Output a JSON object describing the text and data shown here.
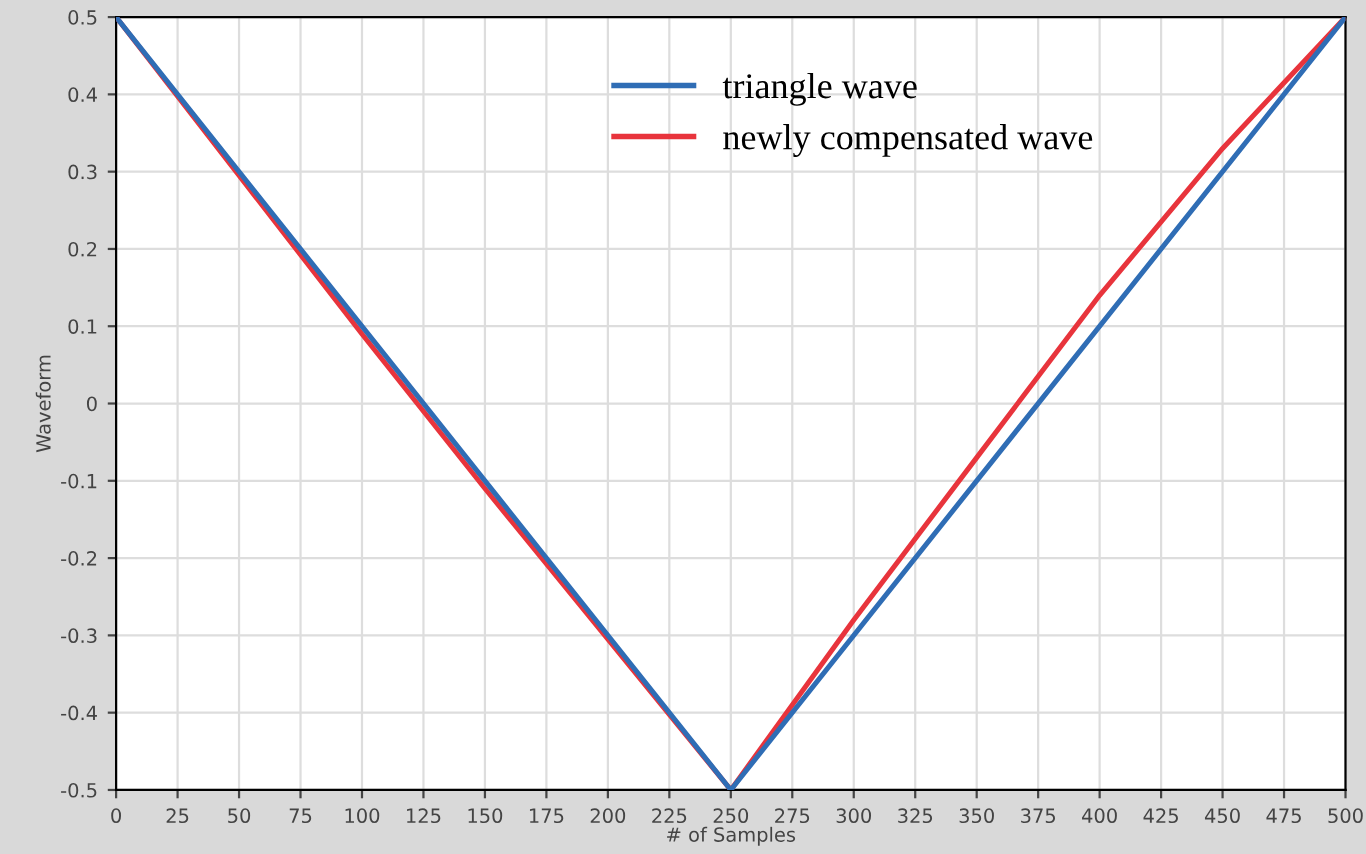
{
  "chart_data": {
    "type": "line",
    "xlabel": "# of Samples",
    "ylabel": "Waveform",
    "xlim": [
      0,
      500
    ],
    "xticks": [
      0,
      25,
      50,
      75,
      100,
      125,
      150,
      175,
      200,
      225,
      250,
      275,
      300,
      325,
      350,
      375,
      400,
      425,
      450,
      475,
      500
    ],
    "ylim": [
      -0.5,
      0.5
    ],
    "yticks": [
      {
        "value": -0.5,
        "label": "-0.5"
      },
      {
        "value": -0.4,
        "label": "-0.4"
      },
      {
        "value": -0.3,
        "label": "-0.3"
      },
      {
        "value": -0.2,
        "label": "-0.2"
      },
      {
        "value": -0.1,
        "label": "-0.1"
      },
      {
        "value": 0,
        "label": "0"
      },
      {
        "value": 0.1,
        "label": "0.1"
      },
      {
        "value": 0.2,
        "label": "0.2"
      },
      {
        "value": 0.3,
        "label": "0.3"
      },
      {
        "value": 0.4,
        "label": "0.4"
      },
      {
        "value": 0.5,
        "label": "0.5"
      }
    ],
    "grid": true,
    "legend": "top",
    "marker": "none",
    "line_style": "solid",
    "series": [
      {
        "name": "newly compensated wave",
        "color": "#e8343c",
        "x": [
          0,
          50,
          100,
          150,
          200,
          250,
          300,
          350,
          400,
          450,
          500
        ],
        "values": [
          0.5,
          0.295,
          0.09,
          -0.11,
          -0.305,
          -0.5,
          -0.28,
          -0.07,
          0.14,
          0.33,
          0.5
        ]
      },
      {
        "name": "triangle wave",
        "color": "#2f6db5",
        "x": [
          0,
          250,
          500
        ],
        "values": [
          0.5,
          -0.5,
          0.5
        ]
      }
    ]
  }
}
